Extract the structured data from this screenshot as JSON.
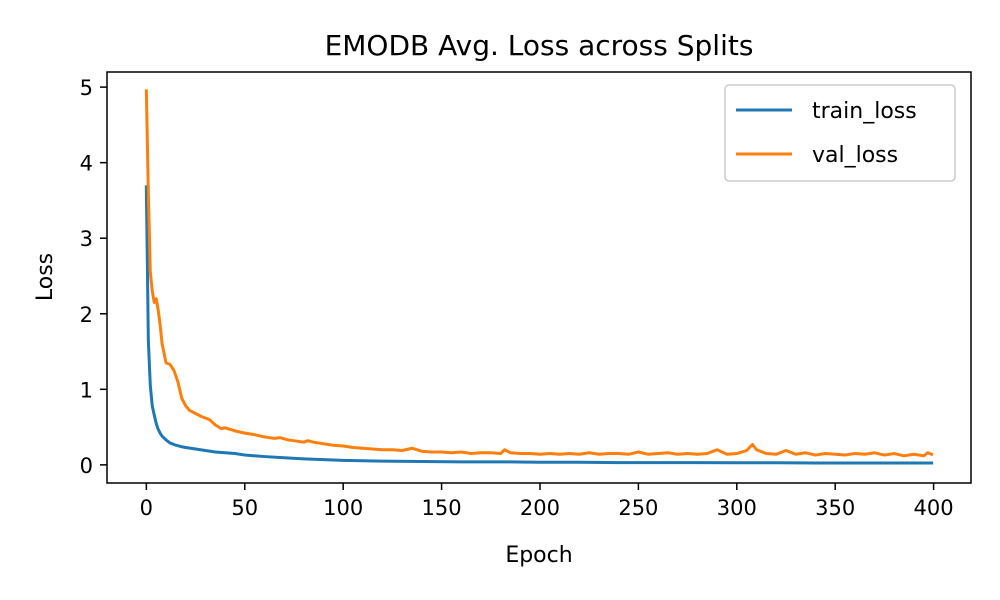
{
  "chart_data": {
    "type": "line",
    "title": "EMODB Avg. Loss across Splits",
    "xlabel": "Epoch",
    "ylabel": "Loss",
    "xlim": [
      -20,
      419
    ],
    "ylim": [
      -0.24,
      5.2
    ],
    "xticks": [
      0,
      50,
      100,
      150,
      200,
      250,
      300,
      350,
      400
    ],
    "yticks": [
      0,
      1,
      2,
      3,
      4,
      5
    ],
    "grid": false,
    "legend_position": "upper right",
    "series": [
      {
        "name": "train_loss",
        "color": "#1f77b4",
        "x": [
          0,
          1,
          2,
          3,
          4,
          5,
          6,
          7,
          8,
          10,
          12,
          15,
          18,
          20,
          25,
          30,
          35,
          40,
          45,
          50,
          60,
          70,
          80,
          90,
          100,
          120,
          140,
          160,
          180,
          200,
          220,
          240,
          260,
          280,
          300,
          320,
          340,
          360,
          380,
          399
        ],
        "y": [
          3.68,
          1.65,
          1.05,
          0.78,
          0.66,
          0.55,
          0.47,
          0.42,
          0.38,
          0.33,
          0.29,
          0.26,
          0.24,
          0.23,
          0.21,
          0.19,
          0.17,
          0.16,
          0.15,
          0.13,
          0.11,
          0.095,
          0.08,
          0.07,
          0.06,
          0.05,
          0.045,
          0.04,
          0.04,
          0.035,
          0.035,
          0.03,
          0.03,
          0.03,
          0.028,
          0.028,
          0.025,
          0.025,
          0.025,
          0.025
        ]
      },
      {
        "name": "val_loss",
        "color": "#ff7f0e",
        "x": [
          0,
          1,
          2,
          3,
          4,
          5,
          6,
          7,
          8,
          10,
          12,
          14,
          16,
          18,
          20,
          22,
          25,
          28,
          30,
          32,
          35,
          38,
          40,
          45,
          50,
          55,
          60,
          65,
          68,
          72,
          75,
          80,
          82,
          85,
          90,
          95,
          100,
          105,
          110,
          115,
          120,
          125,
          130,
          135,
          140,
          145,
          150,
          155,
          160,
          165,
          170,
          175,
          180,
          182,
          185,
          190,
          195,
          200,
          205,
          210,
          215,
          220,
          225,
          230,
          235,
          240,
          245,
          250,
          255,
          260,
          265,
          270,
          275,
          280,
          285,
          290,
          295,
          300,
          305,
          308,
          310,
          315,
          320,
          325,
          330,
          335,
          340,
          345,
          350,
          355,
          360,
          365,
          370,
          375,
          380,
          385,
          390,
          395,
          397,
          399
        ],
        "y": [
          4.95,
          3.6,
          2.55,
          2.3,
          2.15,
          2.2,
          2.05,
          1.85,
          1.6,
          1.35,
          1.33,
          1.25,
          1.1,
          0.88,
          0.78,
          0.72,
          0.68,
          0.64,
          0.62,
          0.6,
          0.53,
          0.48,
          0.49,
          0.45,
          0.42,
          0.4,
          0.37,
          0.35,
          0.36,
          0.33,
          0.32,
          0.3,
          0.32,
          0.3,
          0.28,
          0.26,
          0.25,
          0.23,
          0.22,
          0.21,
          0.2,
          0.2,
          0.19,
          0.22,
          0.18,
          0.17,
          0.17,
          0.16,
          0.17,
          0.15,
          0.16,
          0.16,
          0.15,
          0.2,
          0.16,
          0.15,
          0.15,
          0.14,
          0.15,
          0.14,
          0.15,
          0.14,
          0.16,
          0.14,
          0.15,
          0.15,
          0.14,
          0.17,
          0.14,
          0.15,
          0.16,
          0.14,
          0.15,
          0.14,
          0.15,
          0.2,
          0.14,
          0.15,
          0.19,
          0.27,
          0.2,
          0.15,
          0.14,
          0.19,
          0.14,
          0.16,
          0.13,
          0.15,
          0.14,
          0.13,
          0.15,
          0.14,
          0.16,
          0.13,
          0.15,
          0.12,
          0.14,
          0.12,
          0.16,
          0.14
        ]
      }
    ]
  }
}
